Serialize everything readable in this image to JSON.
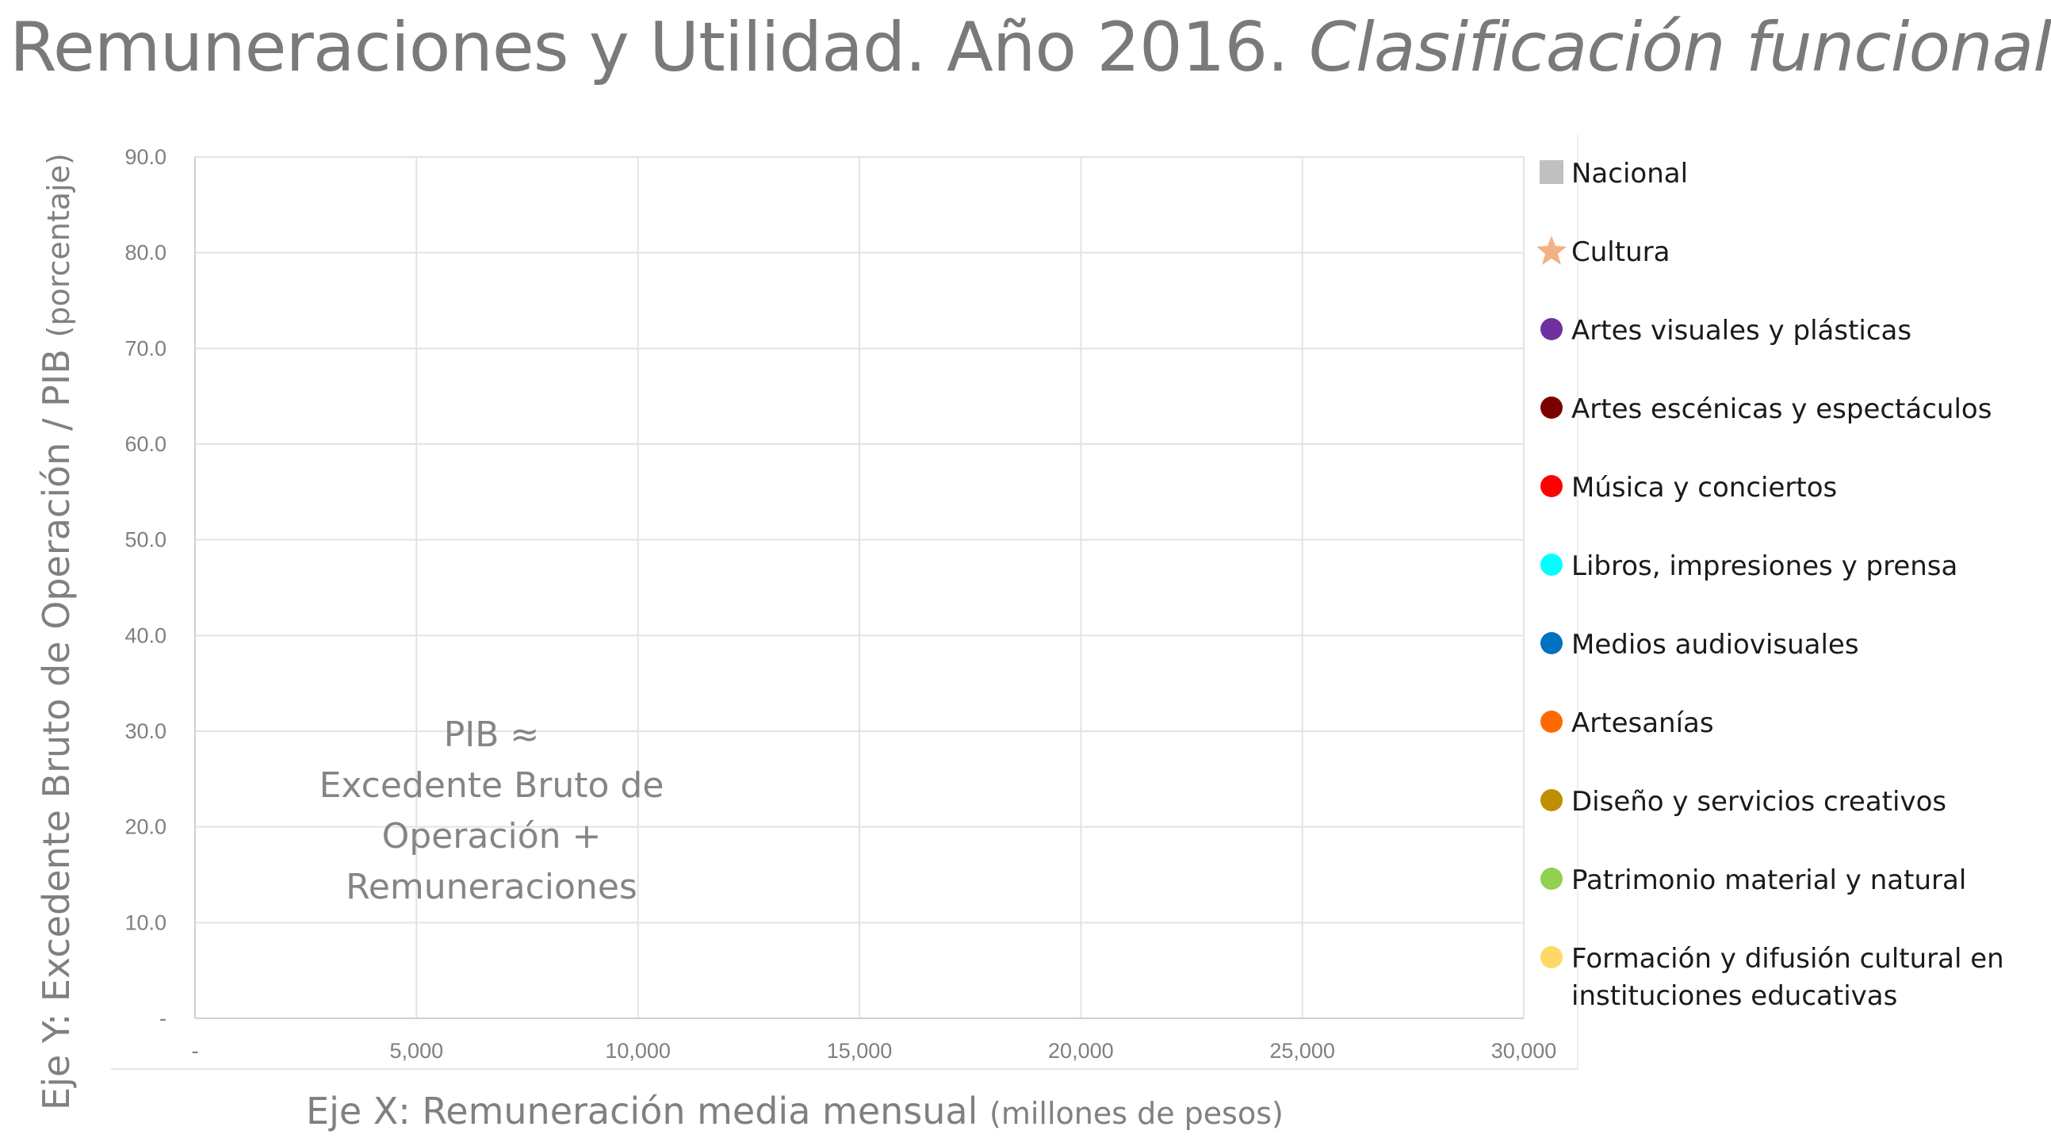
{
  "title": {
    "main": "Remuneraciones y Utilidad. Año 2016.",
    "italic": "Clasificación funcional"
  },
  "annotation": [
    "PIB ≈",
    "Excedente Bruto de",
    "Operación +",
    "Remuneraciones"
  ],
  "colors": {
    "grid": "#e3e3e3",
    "axis": "#d0d0d0",
    "text": "#808080"
  },
  "chart_data": {
    "type": "scatter",
    "title": "Remuneraciones y Utilidad. Año 2016. Clasificación funcional",
    "xlabel": "Eje X: Remuneración media mensual",
    "xlabel_unit": "(millones de pesos)",
    "ylabel": "Eje Y: Excedente Bruto de Operación / PIB",
    "ylabel_unit": "(porcentaje)",
    "xlim": [
      0,
      30000
    ],
    "ylim": [
      0,
      90
    ],
    "x_ticks": [
      0,
      5000,
      10000,
      15000,
      20000,
      25000,
      30000
    ],
    "x_tick_labels": [
      "-",
      "5,000",
      "10,000",
      "15,000",
      "20,000",
      "25,000",
      "30,000"
    ],
    "y_ticks": [
      0,
      10,
      20,
      30,
      40,
      50,
      60,
      70,
      80,
      90
    ],
    "y_tick_labels": [
      "-",
      "10.0",
      "20.0",
      "30.0",
      "40.0",
      "50.0",
      "60.0",
      "70.0",
      "80.0",
      "90.0"
    ],
    "grid": true,
    "legend_position": "right",
    "series": [
      {
        "name": "Nacional",
        "marker": "square",
        "color": "#c0c0c0",
        "points": []
      },
      {
        "name": "Cultura",
        "marker": "star",
        "color": "#f4b183",
        "points": []
      },
      {
        "name": "Artes visuales y plásticas",
        "marker": "circle",
        "color": "#7030a0",
        "points": []
      },
      {
        "name": "Artes escénicas y espectáculos",
        "marker": "circle",
        "color": "#7b0000",
        "points": []
      },
      {
        "name": "Música y conciertos",
        "marker": "circle",
        "color": "#ff0000",
        "points": []
      },
      {
        "name": "Libros, impresiones y prensa",
        "marker": "circle",
        "color": "#00ffff",
        "points": []
      },
      {
        "name": "Medios audiovisuales",
        "marker": "circle",
        "color": "#0070c0",
        "points": []
      },
      {
        "name": "Artesanías",
        "marker": "circle",
        "color": "#ff6a00",
        "points": []
      },
      {
        "name": "Diseño y servicios creativos",
        "marker": "circle",
        "color": "#bf8f00",
        "points": []
      },
      {
        "name": "Patrimonio material y natural",
        "marker": "circle",
        "color": "#92d050",
        "points": []
      },
      {
        "name": "Formación y difusión cultural en instituciones educativas",
        "marker": "circle",
        "color": "#ffd966",
        "points": []
      }
    ]
  }
}
